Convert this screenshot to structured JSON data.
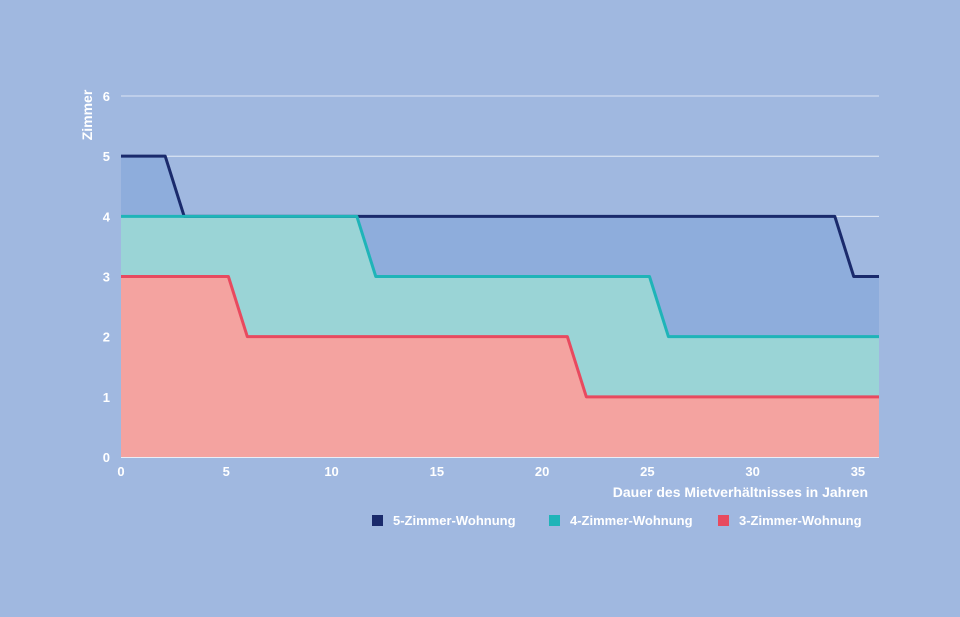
{
  "chart_data": {
    "type": "area",
    "xlabel": "Dauer des Mietverhältnisses in Jahren",
    "ylabel": "Zimmer",
    "xlim": [
      0,
      36
    ],
    "ylim": [
      0,
      6
    ],
    "x_ticks": [
      0,
      5,
      10,
      15,
      20,
      25,
      30,
      35
    ],
    "y_ticks": [
      0,
      1,
      2,
      3,
      4,
      5,
      6
    ],
    "grid": "horizontal",
    "legend_position": "bottom-right",
    "series": [
      {
        "name": "5-Zimmer-Wohnung",
        "line_color": "#1a2a6c",
        "fill_color": "#8eaddc",
        "points": [
          [
            0,
            5
          ],
          [
            2.1,
            5
          ],
          [
            3,
            4
          ],
          [
            33.9,
            4
          ],
          [
            34.8,
            3
          ],
          [
            36,
            3
          ]
        ]
      },
      {
        "name": "4-Zimmer-Wohnung",
        "line_color": "#1fb4b8",
        "fill_color": "#9ad4d6",
        "points": [
          [
            0,
            4
          ],
          [
            11.2,
            4
          ],
          [
            12.1,
            3
          ],
          [
            25.1,
            3
          ],
          [
            26,
            2
          ],
          [
            36,
            2
          ]
        ]
      },
      {
        "name": "3-Zimmer-Wohnung",
        "line_color": "#e84a5f",
        "fill_color": "#f4a3a0",
        "points": [
          [
            0,
            3
          ],
          [
            5.1,
            3
          ],
          [
            6,
            2
          ],
          [
            21.2,
            2
          ],
          [
            22.1,
            1
          ],
          [
            36,
            1
          ]
        ]
      }
    ]
  }
}
